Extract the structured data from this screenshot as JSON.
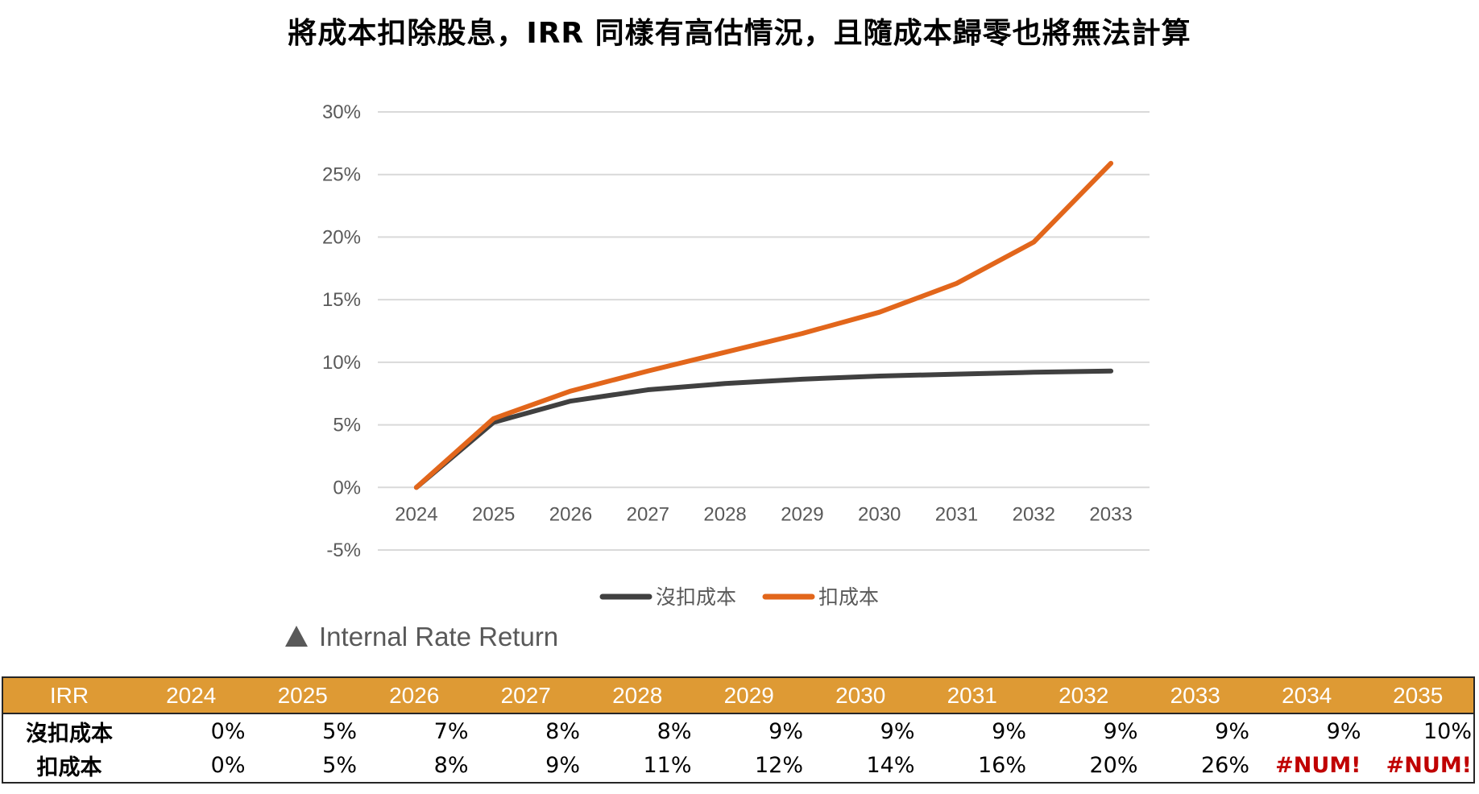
{
  "title": "將成本扣除股息，IRR 同樣有高估情況，且隨成本歸零也將無法計算",
  "caption": "Internal Rate Return",
  "caption_icon": "triangle-up-icon",
  "colors": {
    "series_no_cost": "#404040",
    "series_cost": "#E2661B",
    "table_header_bg": "#DE9A34",
    "error_text": "#C00000",
    "gridline": "#D9D9D9",
    "axis_text": "#595959"
  },
  "chart_data": {
    "type": "line",
    "title": "",
    "xlabel": "",
    "ylabel": "",
    "categories": [
      "2024",
      "2025",
      "2026",
      "2027",
      "2028",
      "2029",
      "2030",
      "2031",
      "2032",
      "2033"
    ],
    "ylim": [
      -5,
      30
    ],
    "yticks": [
      30,
      25,
      20,
      15,
      10,
      5,
      0,
      -5
    ],
    "ytick_labels": [
      "30%",
      "25%",
      "20%",
      "15%",
      "10%",
      "5%",
      "0%",
      "-5%"
    ],
    "y_unit": "%",
    "grid": true,
    "legend_position": "bottom",
    "series": [
      {
        "name": "沒扣成本",
        "color": "#404040",
        "values": [
          0,
          5.2,
          6.9,
          7.8,
          8.3,
          8.65,
          8.9,
          9.05,
          9.2,
          9.3
        ]
      },
      {
        "name": "扣成本",
        "color": "#E2661B",
        "values": [
          0,
          5.5,
          7.7,
          9.3,
          10.8,
          12.3,
          14.0,
          16.3,
          19.6,
          25.9
        ]
      }
    ]
  },
  "table": {
    "header": [
      "IRR",
      "2024",
      "2025",
      "2026",
      "2027",
      "2028",
      "2029",
      "2030",
      "2031",
      "2032",
      "2033",
      "2034",
      "2035"
    ],
    "rows": [
      {
        "label": "沒扣成本",
        "cells": [
          "0%",
          "5%",
          "7%",
          "8%",
          "8%",
          "9%",
          "9%",
          "9%",
          "9%",
          "9%",
          "9%",
          "10%"
        ]
      },
      {
        "label": "扣成本",
        "cells": [
          "0%",
          "5%",
          "8%",
          "9%",
          "11%",
          "12%",
          "14%",
          "16%",
          "20%",
          "26%",
          "#NUM!",
          "#NUM!"
        ]
      }
    ]
  }
}
